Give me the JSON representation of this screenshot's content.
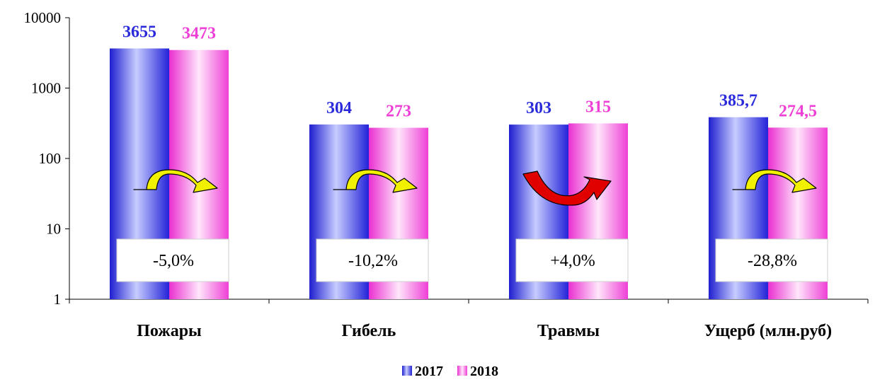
{
  "chart_data": {
    "type": "bar",
    "yscale": "log",
    "ylim": [
      1,
      10000
    ],
    "yticks": [
      1,
      10,
      100,
      1000,
      10000
    ],
    "grid": false,
    "legend_position": "bottom",
    "categories": [
      "Пожары",
      "Гибель",
      "Травмы",
      "Ущерб (млн.руб)"
    ],
    "series": [
      {
        "name": "2017",
        "color": "#2b2bdb",
        "values": [
          3655,
          304,
          303,
          385.7
        ],
        "labels": [
          "3655",
          "304",
          "303",
          "385,7"
        ]
      },
      {
        "name": "2018",
        "color": "#ee3fd6",
        "values": [
          3473,
          273,
          315,
          274.5
        ],
        "labels": [
          "3473",
          "273",
          "315",
          "274,5"
        ]
      }
    ],
    "annotations": [
      {
        "category": "Пожары",
        "text": "-5,0%",
        "direction": "down",
        "arrow_color": "#f0f000"
      },
      {
        "category": "Гибель",
        "text": "-10,2%",
        "direction": "down",
        "arrow_color": "#f0f000"
      },
      {
        "category": "Травмы",
        "text": "+4,0%",
        "direction": "up",
        "arrow_color": "#e00000"
      },
      {
        "category": "Ущерб (млн.руб)",
        "text": "-28,8%",
        "direction": "down",
        "arrow_color": "#f0f000"
      }
    ]
  }
}
